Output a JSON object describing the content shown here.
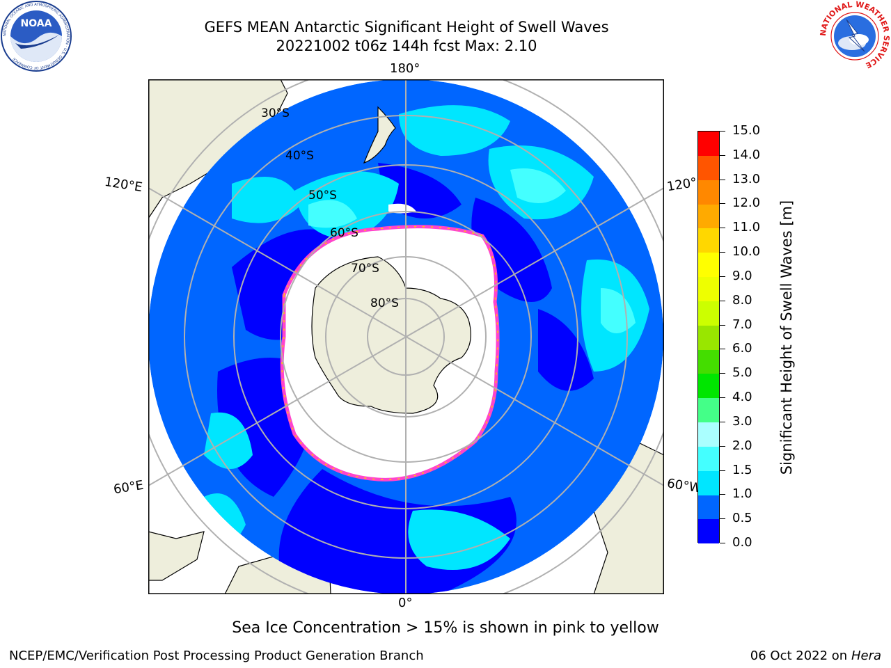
{
  "header": {
    "title_line1": "GEFS MEAN Antarctic Significant Height of Swell Waves",
    "title_line2": "20221002 t06z 144h fcst   Max: 2.10"
  },
  "logos": {
    "noaa": {
      "text": "NOAA",
      "ring_text": "NATIONAL OCEANIC AND ATMOSPHERIC ADMINISTRATION · U.S. DEPARTMENT OF COMMERCE"
    },
    "nws": {
      "ring_text": "NATIONAL WEATHER SERVICE"
    }
  },
  "map": {
    "lon_labels": {
      "top": "180°",
      "bottom": "0°",
      "left_upper": "120°E",
      "left_lower": "60°E",
      "right_upper": "120°",
      "right_lower": "60°W"
    },
    "lat_labels": [
      "30°S",
      "40°S",
      "50°S",
      "60°S",
      "70°S",
      "80°S"
    ],
    "colors": {
      "land": "#eeeedc",
      "ice": "#ffffff",
      "ice_edge_pink": "#ff44cc",
      "ice_edge_yellow": "#ffcc00",
      "grid": "#b0b0b0"
    }
  },
  "colorbar": {
    "label": "Significant Height of Swell Waves [m]",
    "ticks": [
      "0.0",
      "0.5",
      "1.0",
      "1.5",
      "2.0",
      "3.0",
      "4.0",
      "5.0",
      "6.0",
      "7.0",
      "8.0",
      "9.0",
      "10.0",
      "11.0",
      "12.0",
      "13.0",
      "14.0",
      "15.0"
    ],
    "colors": [
      "#0000ff",
      "#0066ff",
      "#00e6ff",
      "#44ffff",
      "#aaffff",
      "#44ff88",
      "#00e600",
      "#44dd00",
      "#99e600",
      "#ccff00",
      "#eeff00",
      "#ffff00",
      "#ffd700",
      "#ffaa00",
      "#ff8800",
      "#ff5500",
      "#ff0000"
    ]
  },
  "footer": {
    "note": "Sea Ice Concentration > 15% is shown in pink to yellow",
    "left": "NCEP/EMC/Verification Post Processing Product Generation Branch",
    "right_prefix": "06 Oct 2022 on ",
    "right_host": "Hera"
  }
}
